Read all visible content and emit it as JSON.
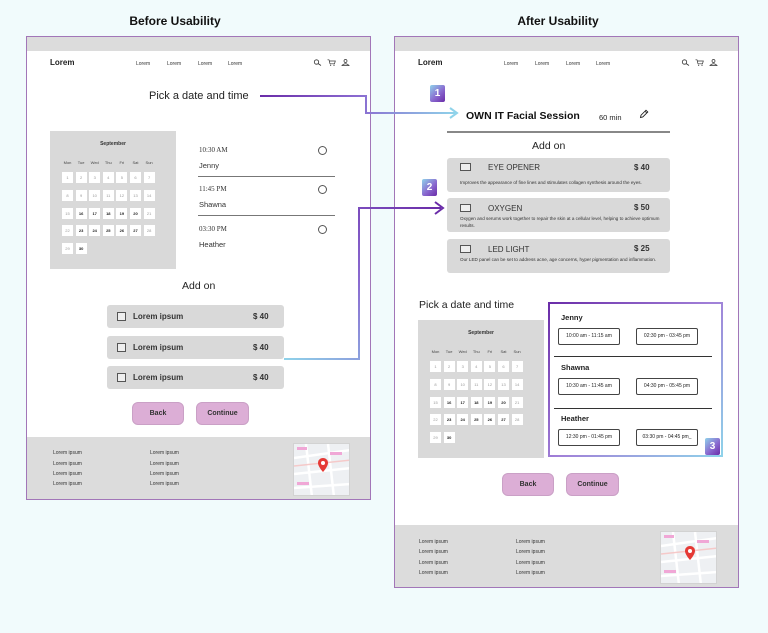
{
  "headings": {
    "before": "Before Usability",
    "after": "After Usability"
  },
  "nav": {
    "logo": "Lorem",
    "links": [
      "Lorem",
      "Lorem",
      "Lorem",
      "Lorem"
    ]
  },
  "calendar": {
    "month": "September",
    "days_of_week": [
      "Mon",
      "Tue",
      "Wed",
      "Thu",
      "Fri",
      "Sat",
      "Sun"
    ],
    "rows": [
      [
        "1",
        "2",
        "3",
        "4",
        "5",
        "6",
        "7"
      ],
      [
        "8",
        "9",
        "10",
        "11",
        "12",
        "13",
        "14"
      ],
      [
        "15",
        "16",
        "17",
        "18",
        "19",
        "20",
        "21"
      ],
      [
        "22",
        "23",
        "24",
        "25",
        "26",
        "27",
        "28"
      ],
      [
        "29",
        "30"
      ]
    ]
  },
  "before": {
    "section_title": "Pick a date and time",
    "slots": [
      {
        "time": "10:30 AM",
        "name": "Jenny"
      },
      {
        "time": "11:45 PM",
        "name": "Shawna"
      },
      {
        "time": "03:30 PM",
        "name": "Heather"
      }
    ],
    "addon_title": "Add on",
    "addons": [
      {
        "label": "Lorem ipsum",
        "price": "$ 40"
      },
      {
        "label": "Lorem ipsum",
        "price": "$ 40"
      },
      {
        "label": "Lorem ipsum",
        "price": "$ 40"
      }
    ],
    "back_label": "Back",
    "continue_label": "Continue",
    "footer_links": [
      [
        "Lorem ipsum",
        "Lorem ipsum",
        "Lorem ipsum",
        "Lorem ipsum"
      ],
      [
        "Lorem ipsum",
        "Lorem ipsum",
        "Lorem ipsum",
        "Lorem ipsum"
      ]
    ]
  },
  "after": {
    "service_title": "OWN IT Facial Session",
    "service_duration": "60 min",
    "addon_title": "Add on",
    "addons": [
      {
        "label": "EYE OPENER",
        "price": "$ 40",
        "description": "Improves the appearance of fine lines and stimulates collagen synthesis around the eyes."
      },
      {
        "label": "OXYGEN",
        "price": "$ 50",
        "description": "Oxygen and serums work together to repair the skin at a cellular level, helping to achieve optimum results."
      },
      {
        "label": "LED LIGHT",
        "price": "$ 25",
        "description": "Our LED panel can be set to address acne, age concerns, hyper pigmentation and inflammation."
      }
    ],
    "section_title": "Pick a date and time",
    "stylists": [
      {
        "name": "Jenny",
        "slots": [
          "10:00 am - 11:15 am",
          "02:30 pm - 03:45 pm"
        ]
      },
      {
        "name": "Shawna",
        "slots": [
          "10:30 am - 11:45 am",
          "04:30 pm - 05:45 pm"
        ]
      },
      {
        "name": "Heather",
        "slots": [
          "12:30 pm - 01:45 pm",
          "03:30 pm - 04:45 pm_"
        ]
      }
    ],
    "back_label": "Back",
    "continue_label": "Continue",
    "footer_links": [
      [
        "Lorem ipsum",
        "Lorem ipsum",
        "Lorem ipsum",
        "Lorem ipsum"
      ],
      [
        "Lorem ipsum",
        "Lorem ipsum",
        "Lorem ipsum",
        "Lorem ipsum"
      ]
    ]
  },
  "badges": [
    "1",
    "2",
    "3"
  ],
  "icons": [
    "search-icon",
    "cart-icon",
    "account-icon",
    "edit-pencil-icon",
    "map-pin-icon"
  ],
  "colors": {
    "accent_purple": "#6a2ca8",
    "accent_cyan": "#8fd3ea",
    "button_pink": "#dcaed6",
    "panel_gray": "#d9d9d9"
  }
}
